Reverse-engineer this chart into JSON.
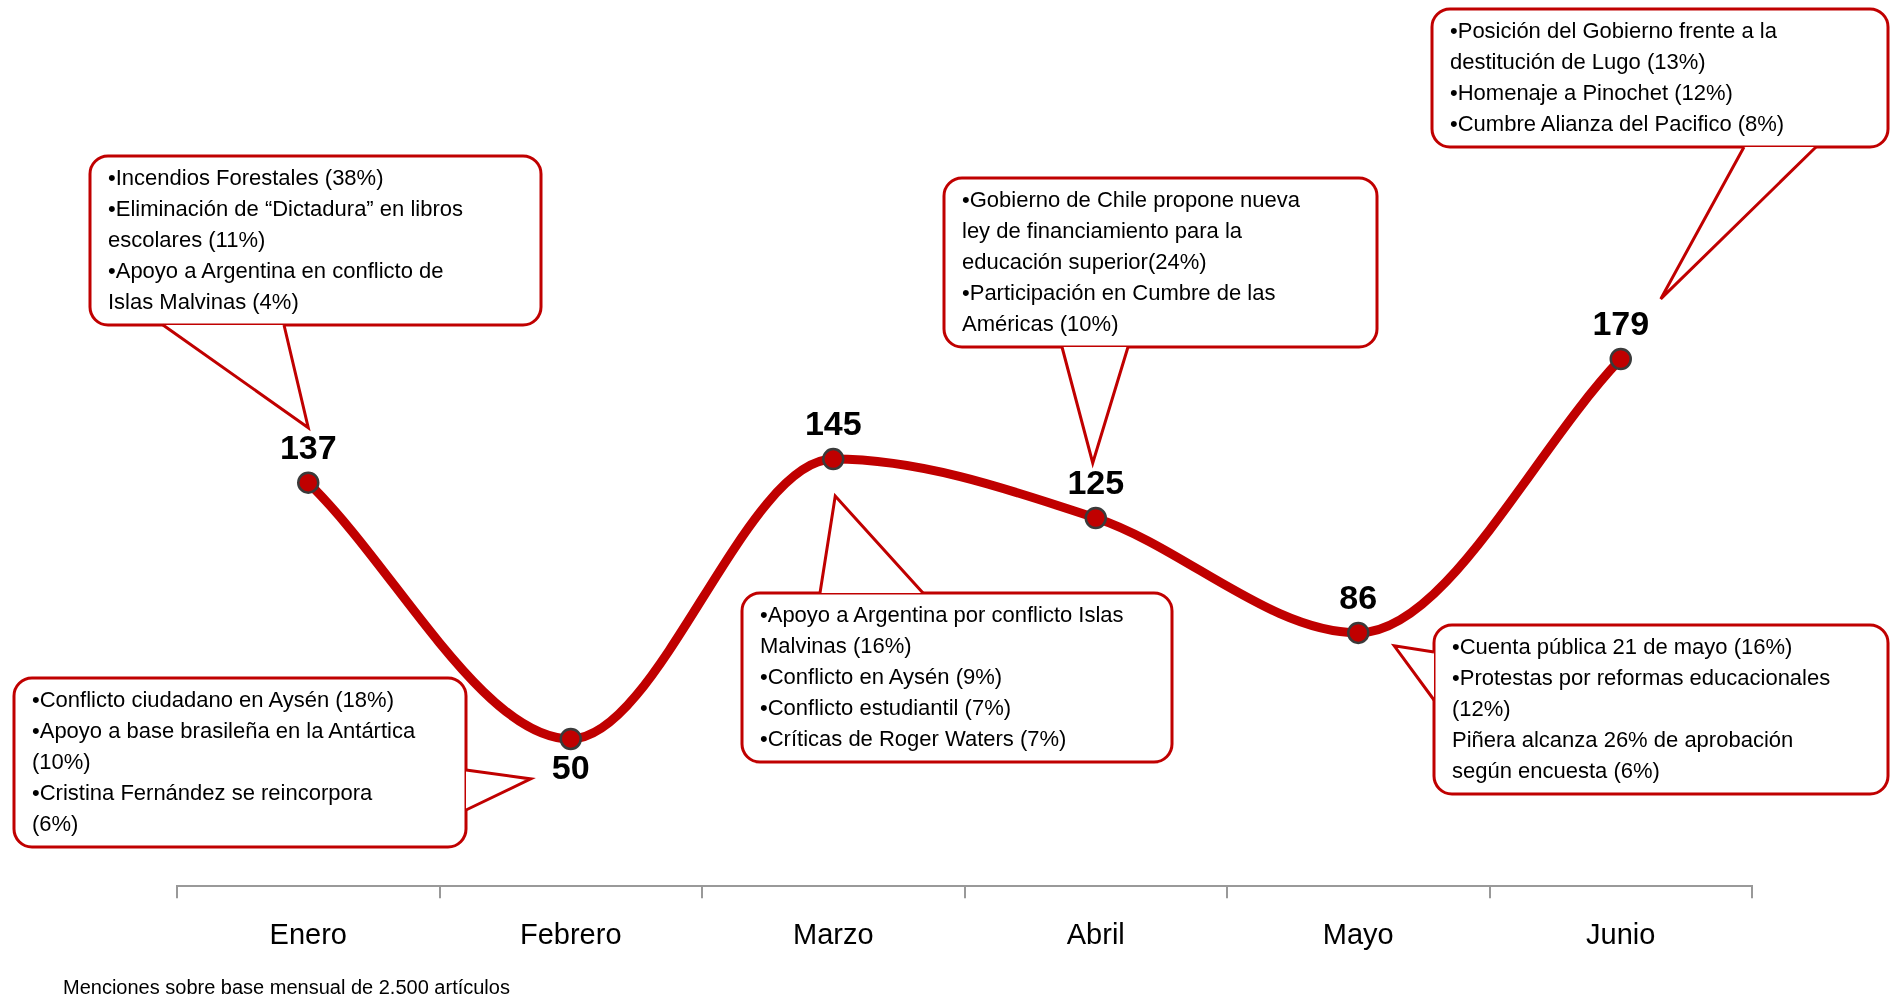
{
  "chart_data": {
    "type": "line",
    "categories": [
      "Enero",
      "Febrero",
      "Marzo",
      "Abril",
      "Mayo",
      "Junio"
    ],
    "values": [
      137,
      50,
      145,
      125,
      86,
      179
    ],
    "color": "#c00000",
    "data_labels": true,
    "grid": false,
    "legend": false,
    "marker": "circle",
    "line_style": "solid",
    "annotations": [
      "•Incendios Forestales (38%)\n•Eliminación de “Dictadura” en libros escolares (11%)\n•Apoyo a Argentina en conflicto de Islas Malvinas (4%)",
      "•Conflicto ciudadano en Aysén (18%)\n•Apoyo a base brasileña en la Antártica (10%)\n•Cristina Fernández se reincorpora (6%)",
      "•Apoyo a Argentina por conflicto Islas Malvinas (16%)\n•Conflicto en Aysén (9%)\n•Conflicto estudiantil (7%)\n•Críticas de Roger Waters (7%)",
      "•Gobierno de Chile propone nueva ley de financiamiento para la educación superior(24%)\n•Participación en Cumbre de las Américas (10%)",
      "•Cuenta pública 21 de mayo (16%)\n•Protestas por reformas educacionales (12%)\nPiñera alcanza 26% de aprobación según encuesta (6%)",
      "•Posición del Gobierno frente a la destitución de Lugo (13%)\n•Homenaje a Pinochet (12%)\n•Cumbre Alianza del Pacifico (8%)",
      "Menciones sobre base mensual de 2.500 artículos"
    ]
  }
}
